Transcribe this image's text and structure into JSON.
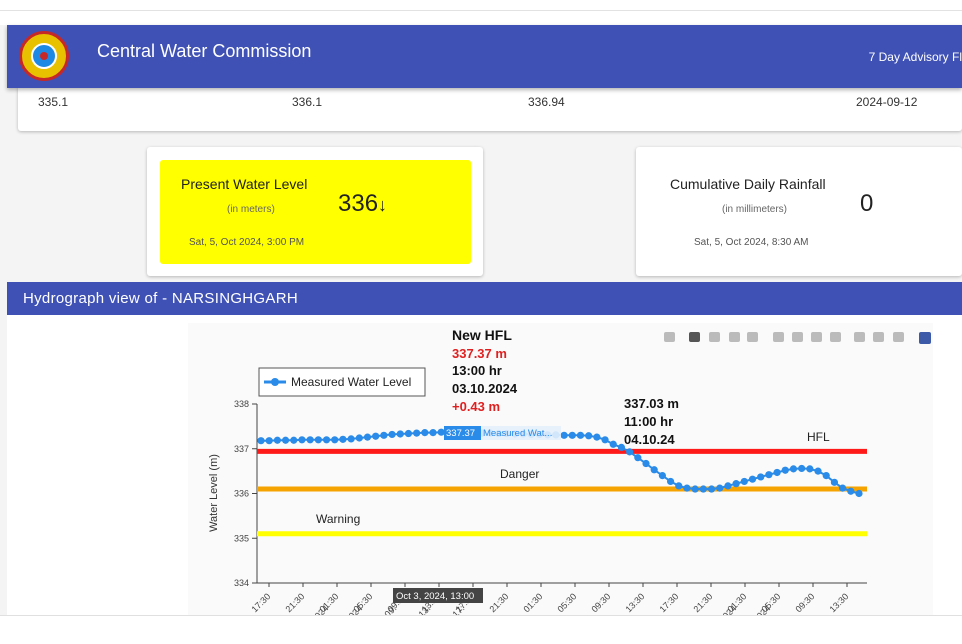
{
  "header": {
    "title": "Central Water Commission",
    "right_text": "7 Day Advisory Fl"
  },
  "stats": [
    "335.1",
    "336.1",
    "336.94",
    "2024-09-12"
  ],
  "present_level": {
    "title": "Present Water Level",
    "unit": "(in meters)",
    "value": "336",
    "trend": "↓",
    "timestamp": "Sat, 5, Oct 2024, 3:00 PM",
    "color": "#ffff00"
  },
  "rainfall": {
    "title": "Cumulative Daily Rainfall",
    "unit": "(in millimeters)",
    "value": "0",
    "timestamp": "Sat, 5, Oct 2024, 8:30 AM"
  },
  "hydrograph": {
    "title": "Hydrograph view of - NARSINGHGARH"
  },
  "toolbar": [
    "camera-icon",
    "zoom-icon",
    "pan-icon",
    "box-select-icon",
    "lasso-icon",
    "zoom-in-icon",
    "zoom-out-icon",
    "autoscale-icon",
    "reset-axes-icon",
    "spike-lines-icon",
    "hover-closest-icon",
    "hover-compare-icon",
    "plotly-logo-icon"
  ],
  "chart_data": {
    "type": "line",
    "ylabel": "Water Level (m)",
    "ylim": [
      334,
      338
    ],
    "y_ticks": [
      "334",
      "335",
      "336",
      "337",
      "338"
    ],
    "x_ticks": [
      "17:30",
      "21:30",
      "01:30",
      "05:30",
      "09:30",
      "13:30",
      "17:30",
      "21:30",
      "01:30",
      "05:30",
      "09:30",
      "13:30",
      "17:30",
      "21:30",
      "01:30",
      "05:30",
      "09:30",
      "13:30"
    ],
    "x_tick_subs": [
      "",
      "",
      "024",
      "024",
      "09:",
      "13:",
      "17:",
      "",
      "",
      "",
      "",
      "",
      "",
      "",
      "024",
      "024",
      "",
      ""
    ],
    "legend": "Measured Water Level",
    "series": [
      {
        "name": "Measured Water Level",
        "color": "#2a8be8",
        "values": [
          337.18,
          337.18,
          337.19,
          337.19,
          337.19,
          337.2,
          337.2,
          337.2,
          337.2,
          337.2,
          337.21,
          337.22,
          337.24,
          337.26,
          337.28,
          337.3,
          337.32,
          337.33,
          337.34,
          337.35,
          337.36,
          337.36,
          337.37,
          337.37,
          337.37,
          337.36,
          337.36,
          337.35,
          337.35,
          337.34,
          337.34,
          337.33,
          337.33,
          337.32,
          337.32,
          337.31,
          337.31,
          337.3,
          337.3,
          337.3,
          337.29,
          337.26,
          337.2,
          337.1,
          337.03,
          336.93,
          336.8,
          336.67,
          336.53,
          336.4,
          336.27,
          336.17,
          336.12,
          336.1,
          336.1,
          336.1,
          336.12,
          336.17,
          336.22,
          336.27,
          336.32,
          336.37,
          336.42,
          336.47,
          336.52,
          336.55,
          336.56,
          336.55,
          336.5,
          336.4,
          336.25,
          336.12,
          336.05,
          336.0
        ]
      }
    ],
    "thresholds": [
      {
        "name": "HFL",
        "value": 336.94,
        "color": "#ff1a1a"
      },
      {
        "name": "Danger",
        "value": 336.1,
        "color": "#f5a300"
      },
      {
        "name": "Warning",
        "value": 335.1,
        "color": "#ffff00"
      }
    ],
    "annotations": {
      "new_hfl": {
        "title": "New HFL",
        "level": "337.37 m",
        "time": "13:00 hr",
        "date": "03.10.2024",
        "change": "+0.43 m"
      },
      "second": {
        "level": "337.03 m",
        "time": "11:00 hr",
        "date": "04.10.24"
      }
    },
    "hover": {
      "value": "337.37",
      "series": "Measured Wat...",
      "x_label": "Oct 3, 2024, 13:00"
    }
  }
}
